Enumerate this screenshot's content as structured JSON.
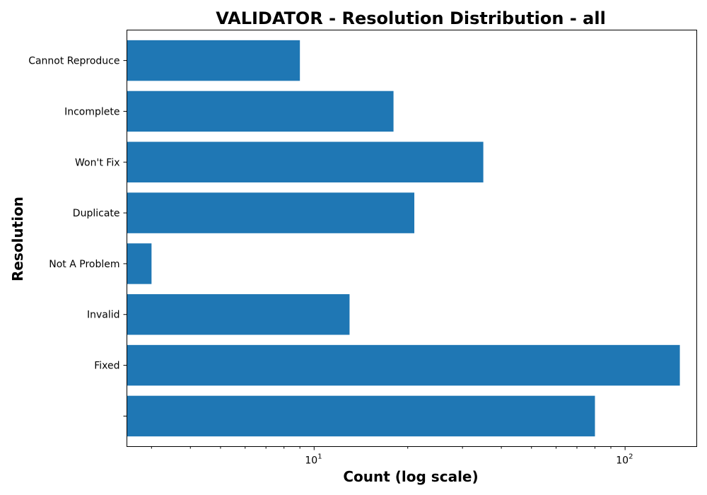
{
  "chart_data": {
    "type": "bar",
    "orientation": "horizontal",
    "title": "VALIDATOR - Resolution Distribution - all",
    "xlabel": "Count (log scale)",
    "ylabel": "Resolution",
    "x_scale": "log",
    "xlim": [
      2.5,
      170
    ],
    "grid": false,
    "categories": [
      "",
      "Fixed",
      "Invalid",
      "Not A Problem",
      "Duplicate",
      "Won't Fix",
      "Incomplete",
      "Cannot Reproduce"
    ],
    "values": [
      80,
      150,
      13,
      3,
      21,
      35,
      18,
      9
    ],
    "x_ticks": [
      {
        "base": "10",
        "exp": "1",
        "value": 10
      },
      {
        "base": "10",
        "exp": "2",
        "value": 100
      }
    ],
    "bar_color": "#1f77b4"
  }
}
